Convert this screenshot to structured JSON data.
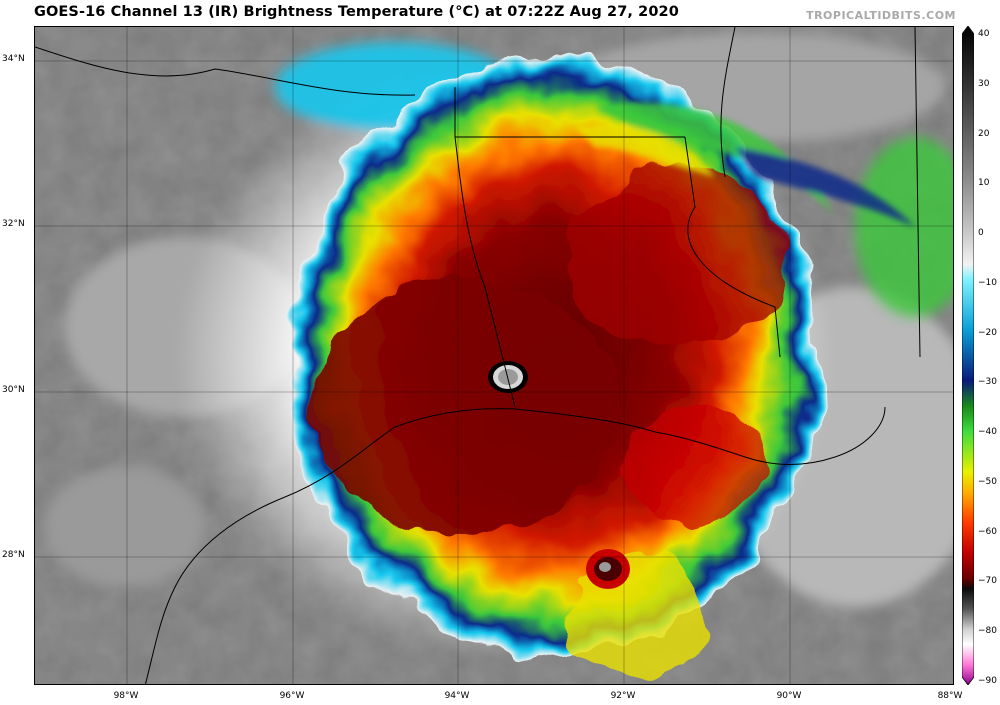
{
  "header": {
    "title": "GOES-16 Channel 13 (IR) Brightness Temperature (°C) at 07:22Z Aug 27, 2020",
    "credit": "TROPICALTIDBITS.COM"
  },
  "axes": {
    "latitude_labels": [
      "34°N",
      "32°N",
      "30°N",
      "28°N"
    ],
    "longitude_labels": [
      "98°W",
      "96°W",
      "94°W",
      "92°W",
      "90°W",
      "88°W"
    ]
  },
  "colorbar": {
    "unit": "°C",
    "range": [
      -90,
      40
    ],
    "tick_labels": [
      "40",
      "30",
      "20",
      "10",
      "0",
      "−10",
      "−20",
      "−30",
      "−40",
      "−50",
      "−60",
      "−70",
      "−80",
      "−90"
    ],
    "stops": [
      {
        "t": 40,
        "color": "#000000"
      },
      {
        "t": 30,
        "color": "#2b2b2b"
      },
      {
        "t": 20,
        "color": "#5a5a5a"
      },
      {
        "t": 10,
        "color": "#8a8a8a"
      },
      {
        "t": 0,
        "color": "#c4c4c4"
      },
      {
        "t": -7,
        "color": "#f2f2f2"
      },
      {
        "t": -10,
        "color": "#7ff2ff"
      },
      {
        "t": -20,
        "color": "#0a9ed6"
      },
      {
        "t": -30,
        "color": "#0a1a7a"
      },
      {
        "t": -35,
        "color": "#1a8a1a"
      },
      {
        "t": -40,
        "color": "#3fdc3f"
      },
      {
        "t": -48,
        "color": "#e8f000"
      },
      {
        "t": -52,
        "color": "#ffae00"
      },
      {
        "t": -58,
        "color": "#ff3a00"
      },
      {
        "t": -64,
        "color": "#c00000"
      },
      {
        "t": -69,
        "color": "#6a0000"
      },
      {
        "t": -71,
        "color": "#0a0a0a"
      },
      {
        "t": -75,
        "color": "#555555"
      },
      {
        "t": -79,
        "color": "#d0d0d0"
      },
      {
        "t": -82,
        "color": "#ffffff"
      },
      {
        "t": -86,
        "color": "#ff7ad8"
      },
      {
        "t": -90,
        "color": "#8a008a"
      }
    ]
  },
  "map": {
    "region": "Texas / Louisiana Gulf Coast",
    "storm": "hurricane eye near the Texas–Louisiana border coast",
    "colors": {
      "background_gray": "#8c8c8c",
      "eye": "#9a9a9a",
      "core_red": "#9a0a0a",
      "band_yellow": "#e8e000",
      "band_green": "#3cc83c",
      "cirrus_cyan": "#14c8ee"
    }
  }
}
